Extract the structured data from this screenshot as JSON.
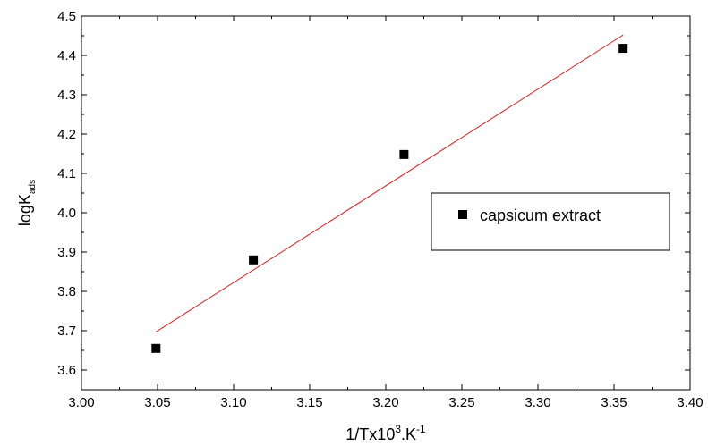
{
  "chart_data": {
    "type": "scatter",
    "title": "",
    "xlabel": {
      "main": "1/Tx10",
      "sup1": "3",
      "mid": ".K",
      "sup2": "-1"
    },
    "ylabel": {
      "main": "logK",
      "sub": "ads"
    },
    "xlim": [
      3.0,
      3.4
    ],
    "ylim": [
      3.55,
      4.5
    ],
    "xticks": [
      "3.00",
      "3.05",
      "3.10",
      "3.15",
      "3.20",
      "3.25",
      "3.30",
      "3.35",
      "3.40"
    ],
    "yticks": [
      "3.6",
      "3.7",
      "3.8",
      "3.9",
      "4.0",
      "4.1",
      "4.2",
      "4.3",
      "4.4",
      "4.5"
    ],
    "grid": false,
    "legend_position": "center-right",
    "series": [
      {
        "name": "capsicum extract",
        "marker": "square",
        "color": "#000000",
        "points": [
          {
            "x": 3.049,
            "y": 3.655
          },
          {
            "x": 3.113,
            "y": 3.88
          },
          {
            "x": 3.212,
            "y": 4.148
          },
          {
            "x": 3.356,
            "y": 4.418
          }
        ]
      }
    ],
    "fit_line": {
      "color": "#e31a1c",
      "points": [
        {
          "x": 3.049,
          "y": 3.697
        },
        {
          "x": 3.356,
          "y": 4.452
        }
      ]
    }
  }
}
